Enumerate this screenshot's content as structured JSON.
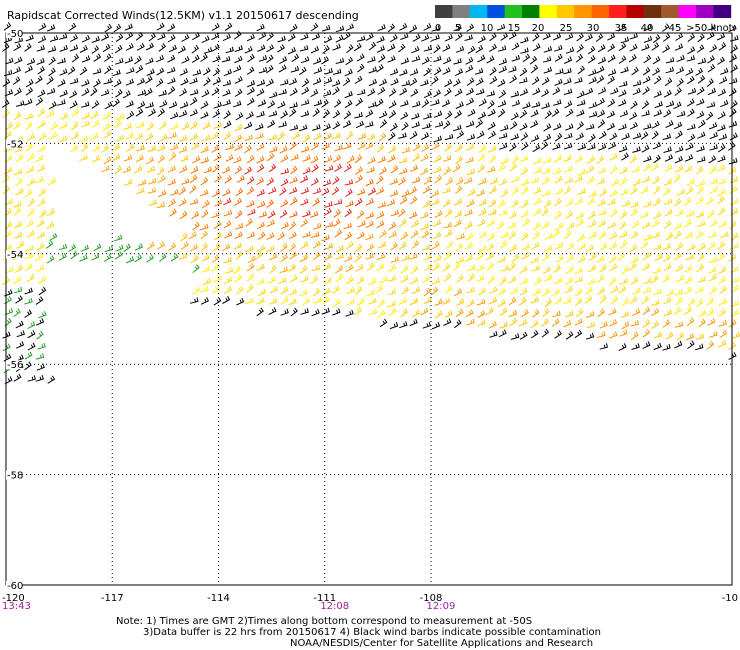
{
  "title": "Rapidscat Corrected Winds(12.5KM) v1.1 20150617 descending",
  "colorbar": {
    "colors": [
      "#404040",
      "#808080",
      "#00b8f0",
      "#0050e0",
      "#20c020",
      "#008000",
      "#ffff00",
      "#ffc800",
      "#ff9600",
      "#ff6400",
      "#ff1e1e",
      "#b40000",
      "#703010",
      "#a05a30",
      "#ff00ff",
      "#a000c0",
      "#400080"
    ],
    "labels": [
      "0",
      "5",
      "10",
      "15",
      "20",
      "25",
      "30",
      "35",
      "40",
      "45",
      ">50 knots"
    ]
  },
  "lat_labels": [
    "-50",
    "-52",
    "-54",
    "-56",
    "-58",
    "-60"
  ],
  "lon_labels": [
    "-120",
    "-117",
    "-114",
    "-111",
    "-108",
    "-10"
  ],
  "time_labels": [
    {
      "text": "13:43",
      "lon": -120
    },
    {
      "text": "12:08",
      "lon": -111
    },
    {
      "text": "12:09",
      "lon": -108
    }
  ],
  "accent_colors": {
    "time_label": "#a020a0",
    "grid": "#000000"
  },
  "notes": [
    "Note: 1) Times are GMT 2)Times along bottom correspond to measurement at -50S",
    "3)Data buffer is 22 hrs from 20150617 4) Black wind barbs indicate possible contamination",
    "NOAA/NESDIS/Center for Satellite Applications and Research"
  ]
}
